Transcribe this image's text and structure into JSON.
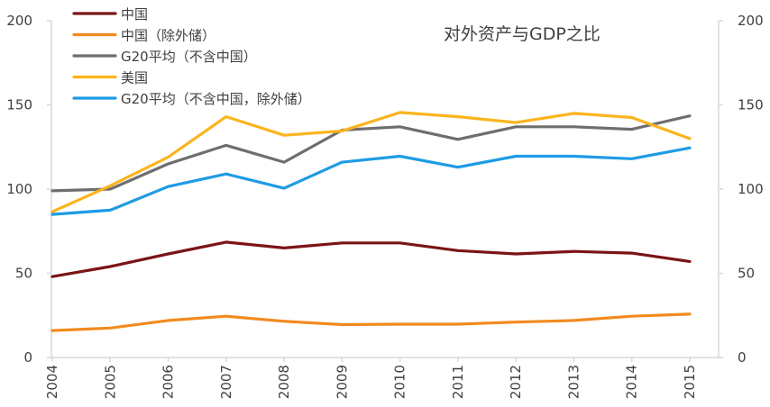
{
  "chart_data": {
    "type": "line",
    "title": "对外资产与GDP之比",
    "xlabel": "",
    "ylabel": "",
    "categories": [
      "2004",
      "2005",
      "2006",
      "2007",
      "2008",
      "2009",
      "2010",
      "2011",
      "2012",
      "2013",
      "2014",
      "2015"
    ],
    "ylim": [
      0,
      200
    ],
    "yticks": [
      0,
      50,
      100,
      150,
      200
    ],
    "y2lim": [
      0,
      200
    ],
    "y2ticks": [
      0,
      50,
      100,
      150,
      200
    ],
    "grid": false,
    "legend_position": "top-left",
    "series": [
      {
        "name": "中国",
        "color": "#7b1416",
        "values": [
          48,
          54,
          61.5,
          68.5,
          65,
          68,
          68,
          63.5,
          61.5,
          63,
          62,
          57
        ]
      },
      {
        "name": "中国（除外储）",
        "color": "#f28a1e",
        "values": [
          16,
          17.5,
          22,
          24.5,
          21.5,
          19.5,
          19.8,
          19.8,
          21,
          22,
          24.5,
          25.8
        ]
      },
      {
        "name": "G20平均（不含中国）",
        "color": "#6e6e6e",
        "values": [
          99,
          100,
          115,
          126,
          116,
          135,
          137,
          129.5,
          137,
          137,
          135.5,
          143.5
        ]
      },
      {
        "name": "美国",
        "color": "#fbb41c",
        "values": [
          86.5,
          102,
          119,
          143,
          132,
          134.5,
          145.5,
          143,
          139.5,
          145,
          142.5,
          130
        ]
      },
      {
        "name": "G20平均（不含中国，除外储）",
        "color": "#1e9be4",
        "values": [
          85,
          87.5,
          101.5,
          109,
          100.5,
          116,
          119.5,
          113,
          119.5,
          119.5,
          118,
          124.5
        ]
      }
    ]
  }
}
